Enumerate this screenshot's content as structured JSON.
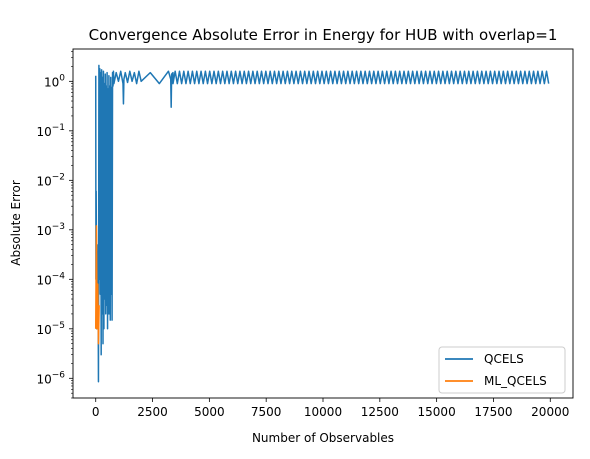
{
  "chart_data": {
    "type": "line",
    "title": "Convergence Absolute Error in Energy for HUB with overlap=1",
    "xlabel": "Number of Observables",
    "ylabel": "Absolute Error",
    "xlim": [
      -1000,
      21000
    ],
    "ylim": [
      4e-07,
      4.5
    ],
    "yscale": "log",
    "grid": false,
    "legend_position": "lower right",
    "x_ticks": [
      0,
      2500,
      5000,
      7500,
      10000,
      12500,
      15000,
      17500,
      20000
    ],
    "x_tick_labels": [
      "0",
      "2500",
      "5000",
      "7500",
      "10000",
      "12500",
      "15000",
      "17500",
      "20000"
    ],
    "y_ticks": [
      1e-06,
      1e-05,
      0.0001,
      0.001,
      0.01,
      0.1,
      1
    ],
    "y_tick_labels": [
      {
        "base": "10",
        "exp": "−6"
      },
      {
        "base": "10",
        "exp": "−5"
      },
      {
        "base": "10",
        "exp": "−4"
      },
      {
        "base": "10",
        "exp": "−3"
      },
      {
        "base": "10",
        "exp": "−2"
      },
      {
        "base": "10",
        "exp": "−1"
      },
      {
        "base": "10",
        "exp": "0"
      }
    ],
    "series": [
      {
        "name": "QCELS",
        "color": "#1f77b4",
        "x": [
          0,
          10,
          20,
          40,
          60,
          80,
          100,
          120,
          140,
          160,
          180,
          200,
          220,
          240,
          260,
          280,
          300,
          320,
          340,
          360,
          380,
          400,
          420,
          440,
          460,
          480,
          500,
          520,
          540,
          560,
          580,
          600,
          620,
          640,
          660,
          680,
          700,
          720,
          740,
          760,
          780,
          800,
          900,
          1000,
          1100,
          1200,
          1220,
          1240,
          1300,
          1400,
          1500,
          1600,
          1700,
          1800,
          1900,
          2000,
          2400,
          2800,
          3200,
          3300,
          3320,
          3340,
          3400
        ],
        "y": [
          1.3,
          0.0001,
          0.006,
          1e-05,
          0.0005,
          2e-05,
          0.0003,
          8.5e-07,
          2.1,
          0.0001,
          1.8,
          5e-05,
          1.5,
          3e-06,
          1.7,
          2e-05,
          1.2,
          5e-06,
          1.6,
          1e-05,
          0.9,
          4e-05,
          1.4,
          2e-05,
          0.8,
          3e-05,
          1.5,
          1e-05,
          0.7,
          2e-05,
          1.3,
          2e-05,
          0.8,
          1.5e-05,
          1.2,
          5e-05,
          0.75,
          1.5e-05,
          1.5,
          0.8,
          1.6,
          0.9,
          1.5,
          1.0,
          1.6,
          0.9,
          0.35,
          1.1,
          1.5,
          0.95,
          1.6,
          1.0,
          1.5,
          0.9,
          1.6,
          1.0,
          1.5,
          0.9,
          1.6,
          1.1,
          0.3,
          1.4,
          1.5
        ],
        "oscillation": {
          "from": 3400,
          "to": 20000,
          "period": 190,
          "low": 0.9,
          "high": 1.6
        }
      },
      {
        "name": "ML_QCELS",
        "color": "#ff7f0e",
        "x": [
          0,
          30,
          60,
          90,
          120,
          150
        ],
        "y": [
          1e-05,
          0.0012,
          1e-05,
          8e-05,
          5e-06,
          3e-05
        ]
      }
    ]
  }
}
